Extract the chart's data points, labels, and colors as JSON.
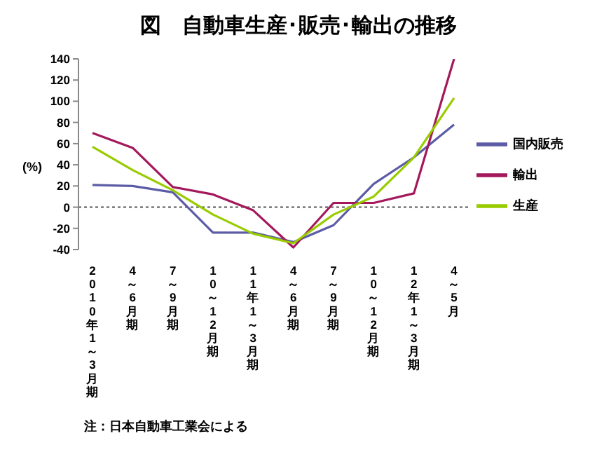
{
  "chart_data": {
    "type": "line",
    "title": "図　自動車生産･販売･輸出の推移",
    "ylabel": "(%)",
    "categories": [
      "2010年1～3月期",
      "4～6月期",
      "7～9月期",
      "10～12月期",
      "11年1～3月期",
      "4～6月期",
      "7～9月期",
      "10～12月期",
      "12年1～3月期",
      "4～5月"
    ],
    "series": [
      {
        "name": "国内販売",
        "color": "#5c5ca6",
        "values": [
          21,
          20,
          14,
          -24,
          -24,
          -33,
          -17,
          22,
          47,
          78
        ]
      },
      {
        "name": "輸出",
        "color": "#a3195b",
        "values": [
          70,
          56,
          19,
          12,
          -3,
          -38,
          4,
          4,
          13,
          140
        ]
      },
      {
        "name": "生産",
        "color": "#99cc00",
        "values": [
          57,
          35,
          16,
          -7,
          -25,
          -34,
          -7,
          10,
          47,
          103
        ]
      }
    ],
    "ylim": [
      -40,
      140
    ],
    "yticks": [
      -40,
      -20,
      0,
      20,
      40,
      60,
      80,
      100,
      120,
      140
    ],
    "ref_lines": [
      {
        "axis": "y",
        "value": 0,
        "color": "#555555",
        "line_style": "dotted"
      }
    ],
    "annotations": [
      "注：日本自動車工業会による"
    ],
    "grid": false,
    "legend": "right",
    "marker": "none",
    "line_style": "solid"
  }
}
